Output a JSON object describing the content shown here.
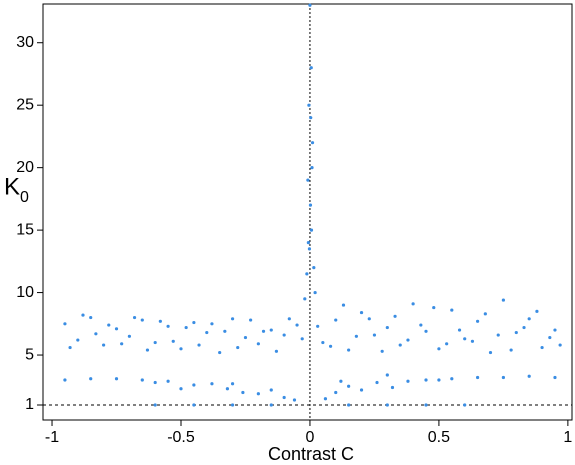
{
  "chart_data": {
    "type": "scatter",
    "xlabel": "Contrast C",
    "ylabel": "K",
    "ylabel_sub": "0",
    "color": "#3a8de3",
    "xlim": [
      -1.035,
      1.016
    ],
    "ylim": [
      -0.2,
      33.1
    ],
    "xticks": [
      -1,
      -0.5,
      0,
      0.5,
      1
    ],
    "yticks": [
      1,
      5,
      10,
      15,
      20,
      25,
      30
    ],
    "hlines": [
      1
    ],
    "vlines": [
      0
    ],
    "x": [
      -0.95,
      -0.9,
      -0.85,
      -0.8,
      -0.75,
      -0.7,
      -0.65,
      -0.6,
      -0.55,
      -0.5,
      -0.45,
      -0.4,
      -0.35,
      -0.3,
      -0.25,
      -0.2,
      -0.15,
      -0.1,
      -0.05,
      -0.93,
      -0.88,
      -0.83,
      -0.78,
      -0.73,
      -0.68,
      -0.63,
      -0.58,
      -0.53,
      -0.48,
      -0.43,
      -0.38,
      -0.33,
      -0.28,
      -0.23,
      -0.18,
      -0.13,
      -0.08,
      -0.03,
      0.05,
      0.1,
      0.15,
      0.2,
      0.25,
      0.3,
      0.35,
      0.4,
      0.45,
      0.5,
      0.55,
      0.6,
      0.65,
      0.7,
      0.75,
      0.8,
      0.85,
      0.9,
      0.95,
      0.03,
      0.08,
      0.13,
      0.18,
      0.23,
      0.28,
      0.33,
      0.38,
      0.43,
      0.48,
      0.53,
      0.58,
      0.63,
      0.68,
      0.73,
      0.78,
      0.83,
      0.88,
      0.93,
      0.97,
      -0.95,
      -0.85,
      -0.75,
      -0.65,
      -0.55,
      -0.45,
      -0.38,
      -0.32,
      -0.26,
      -0.2,
      -0.15,
      -0.1,
      -0.06,
      -0.6,
      -0.5,
      -0.3,
      0.06,
      0.1,
      0.15,
      0.2,
      0.26,
      0.32,
      0.38,
      0.45,
      0.55,
      0.65,
      0.75,
      0.85,
      0.95,
      0.5,
      0.3,
      0.12,
      -0.6,
      -0.45,
      -0.3,
      -0.15,
      0.15,
      0.3,
      0.45,
      0.6,
      0,
      0.005,
      -0.004,
      0.01,
      -0.008,
      0.002,
      0.006,
      -0.002,
      0.015,
      -0.012,
      0.02,
      -0.02,
      0.003,
      0.008,
      -0.006
    ],
    "values": [
      7.5,
      6.2,
      8.0,
      5.8,
      7.1,
      6.5,
      7.8,
      6.0,
      7.3,
      5.5,
      7.6,
      6.8,
      5.2,
      7.9,
      6.4,
      5.9,
      7.0,
      6.6,
      7.4,
      5.6,
      8.2,
      6.7,
      7.4,
      5.9,
      8.0,
      5.4,
      7.7,
      6.1,
      7.2,
      5.8,
      7.5,
      6.9,
      5.6,
      7.8,
      6.9,
      5.3,
      7.9,
      6.3,
      6.0,
      7.8,
      5.4,
      8.4,
      6.6,
      7.2,
      5.8,
      9.1,
      6.9,
      5.5,
      8.6,
      6.3,
      7.7,
      5.2,
      9.4,
      6.8,
      7.9,
      5.6,
      7.0,
      7.3,
      5.7,
      9.0,
      6.5,
      7.9,
      5.3,
      8.1,
      6.2,
      7.4,
      8.8,
      5.9,
      7.0,
      6.1,
      8.3,
      6.6,
      5.4,
      7.2,
      8.5,
      6.4,
      5.8,
      3.0,
      3.1,
      3.1,
      3.0,
      2.9,
      2.6,
      2.7,
      2.3,
      2.0,
      1.9,
      2.2,
      1.6,
      1.4,
      2.8,
      2.3,
      2.7,
      1.5,
      2.0,
      2.5,
      2.2,
      2.8,
      2.4,
      2.9,
      3.0,
      3.1,
      3.2,
      3.2,
      3.3,
      3.2,
      3.0,
      3.4,
      2.9,
      1,
      1,
      1,
      1,
      1,
      1,
      1,
      1,
      33,
      28,
      25,
      22,
      19,
      17,
      15,
      13.5,
      12,
      11.5,
      10,
      9.5,
      24,
      20,
      14
    ]
  }
}
